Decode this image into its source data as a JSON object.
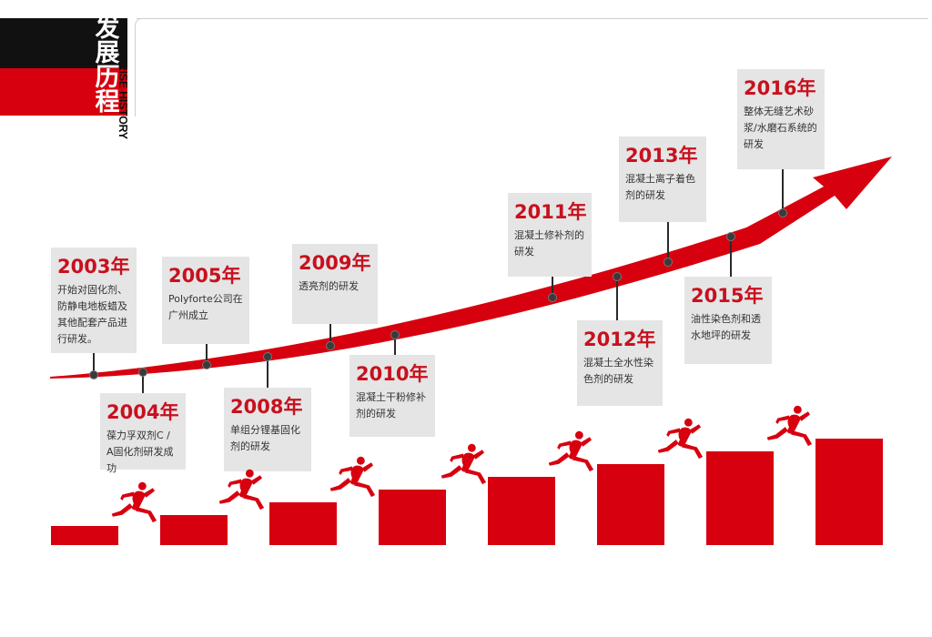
{
  "header": {
    "title_chars": [
      "发",
      "展",
      "历",
      "程"
    ],
    "subtitle": "ENTERPRISE HISTORY"
  },
  "colors": {
    "accent": "#d7000f",
    "card_bg": "#e5e5e5",
    "year_text": "#c8101e"
  },
  "milestones": [
    {
      "year": "2003年",
      "text": "开始对固化剂、防静电地板蜡及其他配套产品进行研发。"
    },
    {
      "year": "2004年",
      "text": "葆力孚双剂C / A固化剂研发成功"
    },
    {
      "year": "2005年",
      "text": "Polyforte公司在广州成立"
    },
    {
      "year": "2008年",
      "text": "单组分锂基固化剂的研发"
    },
    {
      "year": "2009年",
      "text": "透亮剂的研发"
    },
    {
      "year": "2010年",
      "text": "混凝土干粉修补剂的研发"
    },
    {
      "year": "2011年",
      "text": "混凝土修补剂的研发"
    },
    {
      "year": "2012年",
      "text": "混凝土全水性染色剂的研发"
    },
    {
      "year": "2013年",
      "text": "混凝土离子着色剂的研发"
    },
    {
      "year": "2015年",
      "text": "油性染色剂和透水地坪的研发"
    },
    {
      "year": "2016年",
      "text": "整体无缝艺术砂浆/水磨石系统的研发"
    }
  ],
  "steps": [
    {
      "level": 1
    },
    {
      "level": 2
    },
    {
      "level": 3
    },
    {
      "level": 4
    },
    {
      "level": 5
    },
    {
      "level": 6
    },
    {
      "level": 7
    },
    {
      "level": 8
    }
  ],
  "icons": {
    "runner": "runner-icon",
    "arrow": "growth-arrow-icon"
  }
}
